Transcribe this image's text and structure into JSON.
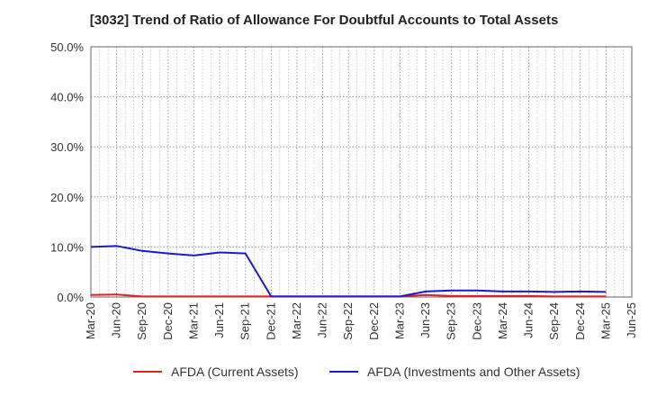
{
  "title": "[3032]  Trend of Ratio of Allowance For Doubtful Accounts to Total Assets",
  "chart_data": {
    "type": "line",
    "title": "[3032]  Trend of Ratio of Allowance For Doubtful Accounts to Total Assets",
    "xlabel": "",
    "ylabel": "",
    "ylim": [
      0,
      50
    ],
    "y_ticks": [
      "0.0%",
      "10.0%",
      "20.0%",
      "30.0%",
      "40.0%",
      "50.0%"
    ],
    "grid": "dotted vertical and horizontal",
    "legend_position": "bottom",
    "categories": [
      "Mar-20",
      "Jun-20",
      "Sep-20",
      "Dec-20",
      "Mar-21",
      "Jun-21",
      "Sep-21",
      "Dec-21",
      "Mar-22",
      "Jun-22",
      "Sep-22",
      "Dec-22",
      "Mar-23",
      "Jun-23",
      "Sep-23",
      "Dec-23",
      "Mar-24",
      "Jun-24",
      "Sep-24",
      "Dec-24",
      "Mar-25",
      "Jun-25"
    ],
    "series": [
      {
        "name": "AFDA (Current Assets)",
        "color": "#dd2222",
        "values": [
          0.4,
          0.5,
          0.1,
          0.1,
          0.1,
          0.1,
          0.1,
          0.1,
          0.1,
          0.1,
          0.1,
          0.1,
          0.1,
          0.4,
          0.2,
          0.2,
          0.2,
          0.2,
          0.1,
          0.1,
          0.1,
          null
        ]
      },
      {
        "name": "AFDA (Investments and Other Assets)",
        "color": "#1a1acc",
        "values": [
          10.0,
          10.2,
          9.2,
          8.7,
          8.3,
          8.9,
          8.7,
          0.1,
          0.1,
          0.1,
          0.1,
          0.1,
          0.1,
          1.1,
          1.3,
          1.3,
          1.1,
          1.1,
          1.0,
          1.1,
          1.0,
          null
        ]
      }
    ]
  }
}
